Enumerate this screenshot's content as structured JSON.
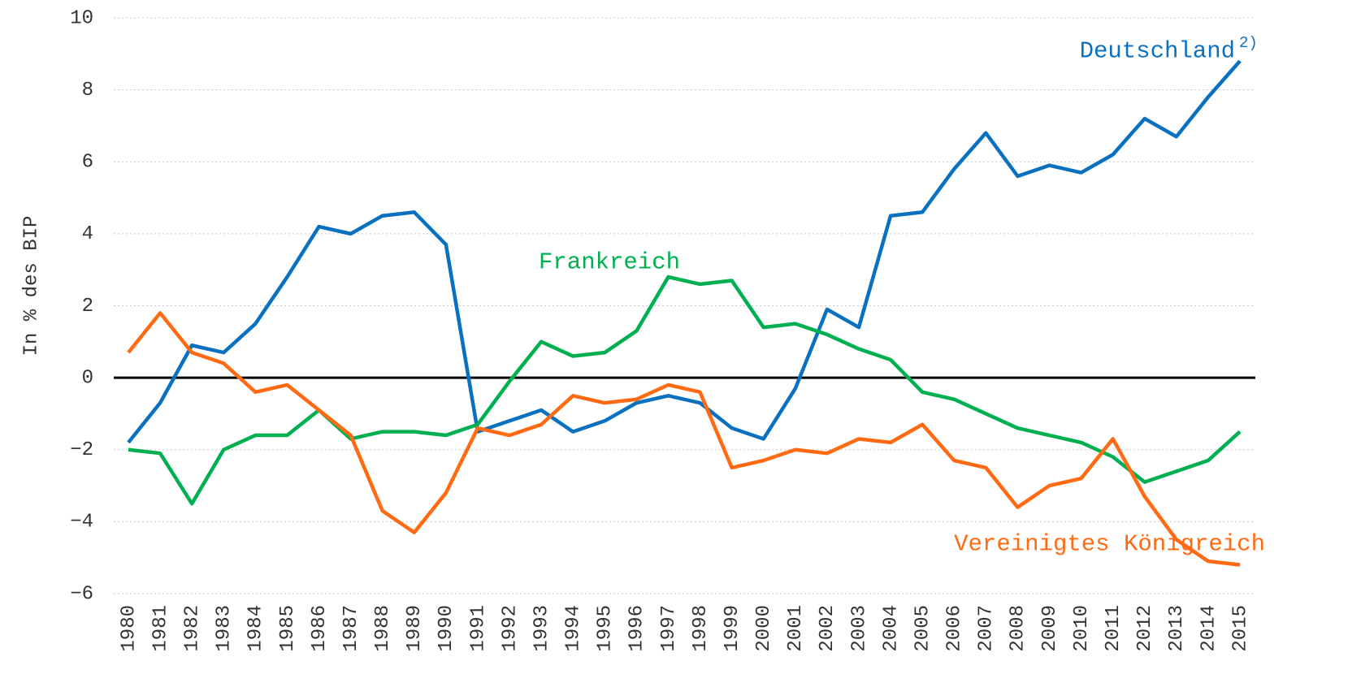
{
  "chart_data": {
    "type": "line",
    "y_label": "In % des BIP",
    "categories": [
      "1980",
      "1981",
      "1982",
      "1983",
      "1984",
      "1985",
      "1986",
      "1987",
      "1988",
      "1989",
      "1990",
      "1991",
      "1992",
      "1993",
      "1994",
      "1995",
      "1996",
      "1997",
      "1998",
      "1999",
      "2000",
      "2001",
      "2002",
      "2003",
      "2004",
      "2005",
      "2006",
      "2007",
      "2008",
      "2009",
      "2010",
      "2011",
      "2012",
      "2013",
      "2014",
      "2015"
    ],
    "series": [
      {
        "name": "Deutschland",
        "note": "2)",
        "color": "#0a70c0",
        "values": [
          -1.8,
          -0.7,
          0.9,
          0.7,
          1.5,
          2.8,
          4.2,
          4.0,
          4.5,
          4.6,
          3.7,
          -1.5,
          -1.2,
          -0.9,
          -1.5,
          -1.2,
          -0.7,
          -0.5,
          -0.7,
          -1.4,
          -1.7,
          -0.3,
          1.9,
          1.4,
          4.5,
          4.6,
          5.8,
          6.8,
          5.6,
          5.9,
          5.7,
          6.2,
          7.2,
          6.7,
          7.8,
          8.8
        ]
      },
      {
        "name": "Frankreich",
        "color": "#00b050",
        "values": [
          -2.0,
          -2.1,
          -3.5,
          -2.0,
          -1.6,
          -1.6,
          -0.9,
          -1.7,
          -1.5,
          -1.5,
          -1.6,
          -1.3,
          -0.1,
          1.0,
          0.6,
          0.7,
          1.3,
          2.8,
          2.6,
          2.7,
          1.4,
          1.5,
          1.2,
          0.8,
          0.5,
          -0.4,
          -0.6,
          -1.0,
          -1.4,
          -1.6,
          -1.8,
          -2.2,
          -2.9,
          -2.6,
          -2.3,
          -1.5
        ]
      },
      {
        "name": "Vereinigtes Königreich",
        "color": "#ff6a13",
        "values": [
          0.7,
          1.8,
          0.7,
          0.4,
          -0.4,
          -0.2,
          -0.9,
          -1.6,
          -3.7,
          -4.3,
          -3.2,
          -1.4,
          -1.6,
          -1.3,
          -0.5,
          -0.7,
          -0.6,
          -0.2,
          -0.4,
          -2.5,
          -2.3,
          -2.0,
          -2.1,
          -1.7,
          -1.8,
          -1.3,
          -2.3,
          -2.5,
          -3.6,
          -3.0,
          -2.8,
          -1.7,
          -3.3,
          -4.5,
          -5.1,
          -5.2
        ]
      }
    ],
    "ylim": [
      -6,
      10
    ],
    "yticks": [
      {
        "value": -6,
        "label": "−6"
      },
      {
        "value": -4,
        "label": "−4"
      },
      {
        "value": -2,
        "label": "−2"
      },
      0,
      2,
      4,
      6,
      8,
      10
    ],
    "grid": true
  }
}
